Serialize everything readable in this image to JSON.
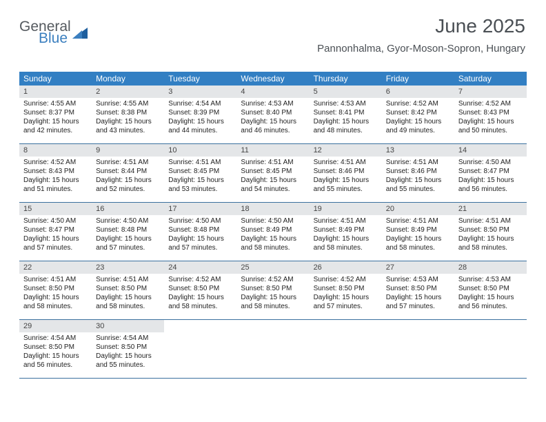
{
  "logo": {
    "general": "General",
    "blue": "Blue"
  },
  "header": {
    "month_title": "June 2025",
    "location": "Pannonhalma, Gyor-Moson-Sopron, Hungary"
  },
  "colors": {
    "header_bg": "#327fc3",
    "header_fg": "#ffffff",
    "daynum_bg": "#e4e6e8",
    "week_border": "#3a6f9e",
    "logo_gray": "#555a5f",
    "logo_blue": "#3b7fbf"
  },
  "day_headers": [
    "Sunday",
    "Monday",
    "Tuesday",
    "Wednesday",
    "Thursday",
    "Friday",
    "Saturday"
  ],
  "days": [
    {
      "n": "1",
      "sr": "4:55 AM",
      "ss": "8:37 PM",
      "dl": "15 hours and 42 minutes."
    },
    {
      "n": "2",
      "sr": "4:55 AM",
      "ss": "8:38 PM",
      "dl": "15 hours and 43 minutes."
    },
    {
      "n": "3",
      "sr": "4:54 AM",
      "ss": "8:39 PM",
      "dl": "15 hours and 44 minutes."
    },
    {
      "n": "4",
      "sr": "4:53 AM",
      "ss": "8:40 PM",
      "dl": "15 hours and 46 minutes."
    },
    {
      "n": "5",
      "sr": "4:53 AM",
      "ss": "8:41 PM",
      "dl": "15 hours and 48 minutes."
    },
    {
      "n": "6",
      "sr": "4:52 AM",
      "ss": "8:42 PM",
      "dl": "15 hours and 49 minutes."
    },
    {
      "n": "7",
      "sr": "4:52 AM",
      "ss": "8:43 PM",
      "dl": "15 hours and 50 minutes."
    },
    {
      "n": "8",
      "sr": "4:52 AM",
      "ss": "8:43 PM",
      "dl": "15 hours and 51 minutes."
    },
    {
      "n": "9",
      "sr": "4:51 AM",
      "ss": "8:44 PM",
      "dl": "15 hours and 52 minutes."
    },
    {
      "n": "10",
      "sr": "4:51 AM",
      "ss": "8:45 PM",
      "dl": "15 hours and 53 minutes."
    },
    {
      "n": "11",
      "sr": "4:51 AM",
      "ss": "8:45 PM",
      "dl": "15 hours and 54 minutes."
    },
    {
      "n": "12",
      "sr": "4:51 AM",
      "ss": "8:46 PM",
      "dl": "15 hours and 55 minutes."
    },
    {
      "n": "13",
      "sr": "4:51 AM",
      "ss": "8:46 PM",
      "dl": "15 hours and 55 minutes."
    },
    {
      "n": "14",
      "sr": "4:50 AM",
      "ss": "8:47 PM",
      "dl": "15 hours and 56 minutes."
    },
    {
      "n": "15",
      "sr": "4:50 AM",
      "ss": "8:47 PM",
      "dl": "15 hours and 57 minutes."
    },
    {
      "n": "16",
      "sr": "4:50 AM",
      "ss": "8:48 PM",
      "dl": "15 hours and 57 minutes."
    },
    {
      "n": "17",
      "sr": "4:50 AM",
      "ss": "8:48 PM",
      "dl": "15 hours and 57 minutes."
    },
    {
      "n": "18",
      "sr": "4:50 AM",
      "ss": "8:49 PM",
      "dl": "15 hours and 58 minutes."
    },
    {
      "n": "19",
      "sr": "4:51 AM",
      "ss": "8:49 PM",
      "dl": "15 hours and 58 minutes."
    },
    {
      "n": "20",
      "sr": "4:51 AM",
      "ss": "8:49 PM",
      "dl": "15 hours and 58 minutes."
    },
    {
      "n": "21",
      "sr": "4:51 AM",
      "ss": "8:50 PM",
      "dl": "15 hours and 58 minutes."
    },
    {
      "n": "22",
      "sr": "4:51 AM",
      "ss": "8:50 PM",
      "dl": "15 hours and 58 minutes."
    },
    {
      "n": "23",
      "sr": "4:51 AM",
      "ss": "8:50 PM",
      "dl": "15 hours and 58 minutes."
    },
    {
      "n": "24",
      "sr": "4:52 AM",
      "ss": "8:50 PM",
      "dl": "15 hours and 58 minutes."
    },
    {
      "n": "25",
      "sr": "4:52 AM",
      "ss": "8:50 PM",
      "dl": "15 hours and 58 minutes."
    },
    {
      "n": "26",
      "sr": "4:52 AM",
      "ss": "8:50 PM",
      "dl": "15 hours and 57 minutes."
    },
    {
      "n": "27",
      "sr": "4:53 AM",
      "ss": "8:50 PM",
      "dl": "15 hours and 57 minutes."
    },
    {
      "n": "28",
      "sr": "4:53 AM",
      "ss": "8:50 PM",
      "dl": "15 hours and 56 minutes."
    },
    {
      "n": "29",
      "sr": "4:54 AM",
      "ss": "8:50 PM",
      "dl": "15 hours and 56 minutes."
    },
    {
      "n": "30",
      "sr": "4:54 AM",
      "ss": "8:50 PM",
      "dl": "15 hours and 55 minutes."
    }
  ],
  "labels": {
    "sunrise": "Sunrise: ",
    "sunset": "Sunset: ",
    "daylight": "Daylight: "
  },
  "grid": {
    "weeks": 5,
    "cols": 7,
    "start_offset": 0,
    "total_days": 30
  }
}
